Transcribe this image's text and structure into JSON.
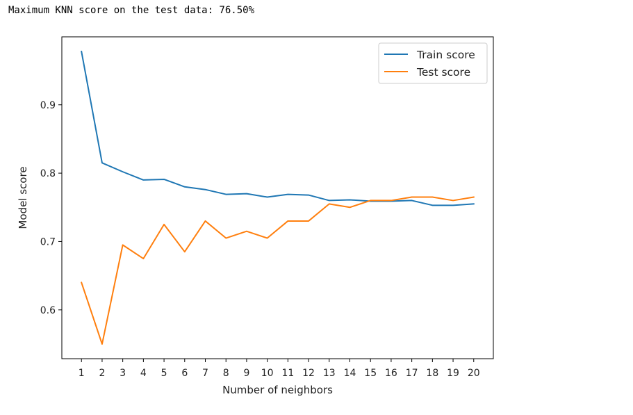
{
  "output": {
    "text": "Maximum KNN score on the test data: 76.50%"
  },
  "chart_data": {
    "type": "line",
    "x": [
      1,
      2,
      3,
      4,
      5,
      6,
      7,
      8,
      9,
      10,
      11,
      12,
      13,
      14,
      15,
      16,
      17,
      18,
      19,
      20
    ],
    "series": [
      {
        "name": "Train score",
        "color": "#1f77b4",
        "values": [
          0.978,
          0.815,
          0.802,
          0.79,
          0.791,
          0.78,
          0.776,
          0.769,
          0.77,
          0.765,
          0.769,
          0.768,
          0.76,
          0.761,
          0.759,
          0.759,
          0.76,
          0.753,
          0.753,
          0.755
        ]
      },
      {
        "name": "Test score",
        "color": "#ff7f0e",
        "values": [
          0.64,
          0.55,
          0.695,
          0.675,
          0.725,
          0.685,
          0.73,
          0.705,
          0.715,
          0.705,
          0.73,
          0.73,
          0.755,
          0.75,
          0.76,
          0.76,
          0.765,
          0.765,
          0.76,
          0.765
        ]
      }
    ],
    "xlabel": "Number of neighbors",
    "ylabel": "Model score",
    "xticks": [
      "1",
      "2",
      "3",
      "4",
      "5",
      "6",
      "7",
      "8",
      "9",
      "10",
      "11",
      "12",
      "13",
      "14",
      "15",
      "16",
      "17",
      "18",
      "19",
      "20"
    ],
    "yticks": [
      "0.6",
      "0.7",
      "0.8",
      "0.9"
    ],
    "ytick_values": [
      0.6,
      0.7,
      0.8,
      0.9
    ],
    "xlim": [
      0.05,
      20.95
    ],
    "ylim": [
      0.5286,
      0.9994
    ],
    "grid": false,
    "legend_position": "upper right"
  }
}
